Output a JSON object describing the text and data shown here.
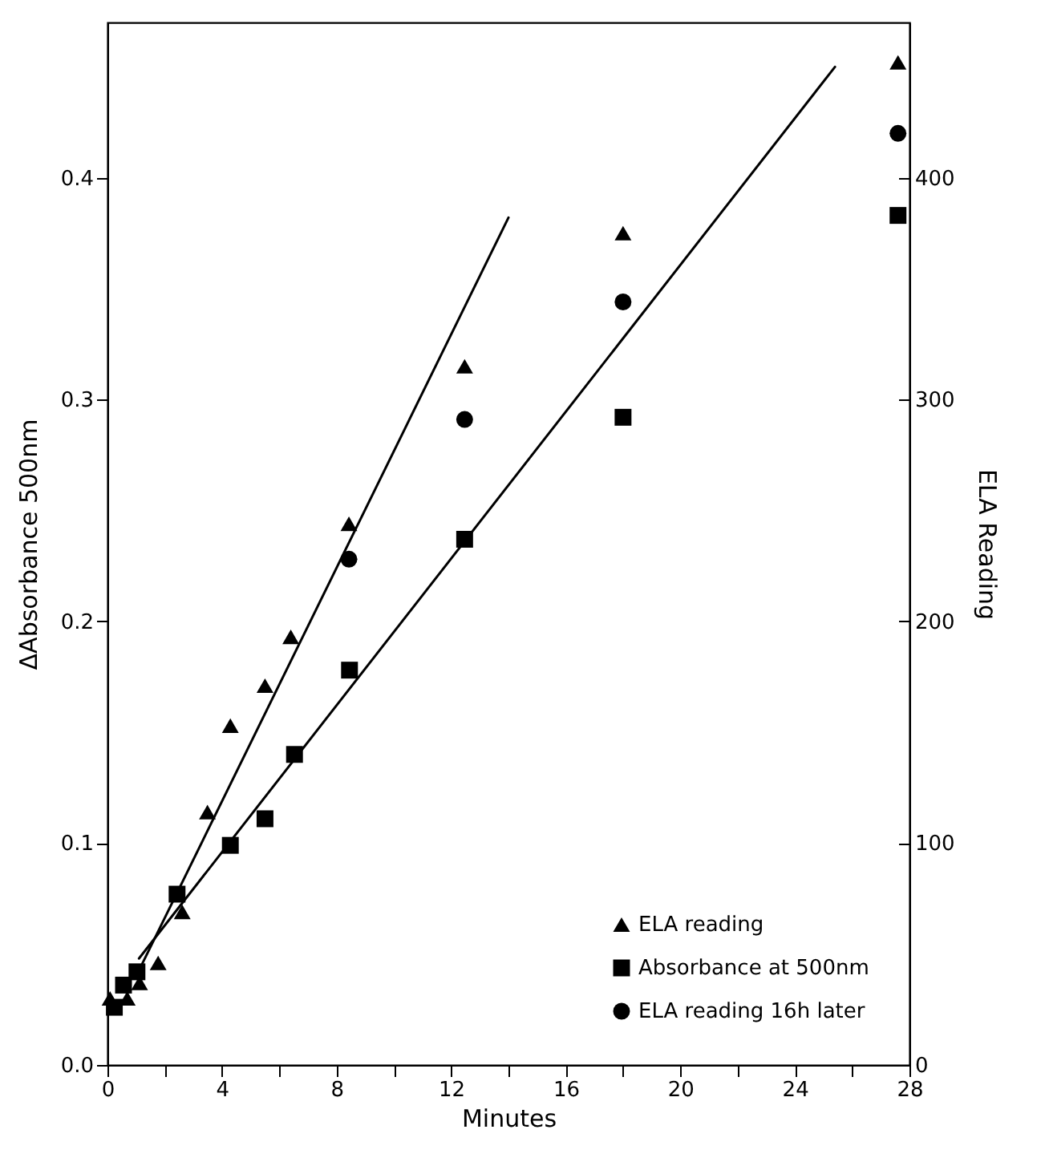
{
  "chart_data": {
    "type": "scatter",
    "xlabel": "Minutes",
    "ylabel": "ΔAbsorbance 500nm",
    "y2label": "ELA Reading",
    "xlim": [
      0,
      28
    ],
    "xticks": [
      0,
      {
        "value": 2,
        "label": null
      },
      4,
      {
        "value": 6,
        "label": null
      },
      8,
      {
        "value": 10,
        "label": null
      },
      12,
      {
        "value": 14,
        "label": null
      },
      16,
      {
        "value": 18,
        "label": null
      },
      20,
      {
        "value": 22,
        "label": null
      },
      24,
      {
        "value": 26,
        "label": null
      },
      28
    ],
    "ylim": [
      0,
      0.47
    ],
    "yticks": [
      {
        "value": 0,
        "label": "0.0"
      },
      0.1,
      0.2,
      0.3,
      0.4
    ],
    "y2lim": [
      0,
      470
    ],
    "y2ticks": [
      0,
      100,
      200,
      300,
      400
    ],
    "grid": false,
    "legend": "bottom right",
    "series": [
      {
        "name": "ELA reading",
        "color": "#000000",
        "marker": "triangle",
        "axis": "y2",
        "x": [
          0.09,
          0.69,
          1.12,
          1.77,
          2.61,
          3.49,
          4.29,
          5.5,
          6.4,
          8.43,
          12.47,
          18.0,
          27.6
        ],
        "values": [
          30,
          30,
          37,
          46,
          69,
          114,
          153,
          171,
          193,
          244,
          315,
          375,
          452
        ]
      },
      {
        "name": "Absorbance at 500nm",
        "color": "#000000",
        "marker": "square",
        "x": [
          0.24,
          0.56,
          1.03,
          2.43,
          4.29,
          5.5,
          6.53,
          8.45,
          12.47,
          18.0,
          27.6
        ],
        "values": [
          0.026,
          0.036,
          0.042,
          0.077,
          0.099,
          0.111,
          0.14,
          0.178,
          0.237,
          0.292,
          0.383
        ]
      },
      {
        "name": "ELA reading 16h later",
        "color": "#000000",
        "marker": "circle",
        "axis": "y2",
        "x": [
          8.43,
          12.47,
          18.0,
          27.6
        ],
        "values": [
          228,
          291,
          344,
          420
        ]
      },
      {
        "type": "line",
        "color": "#000000",
        "axis": "y2",
        "x": [
          1.0,
          14.0
        ],
        "values": [
          40,
          382
        ]
      },
      {
        "type": "line",
        "color": "#000000",
        "x": [
          1.1,
          25.4
        ],
        "values": [
          0.048,
          0.45
        ]
      }
    ]
  }
}
